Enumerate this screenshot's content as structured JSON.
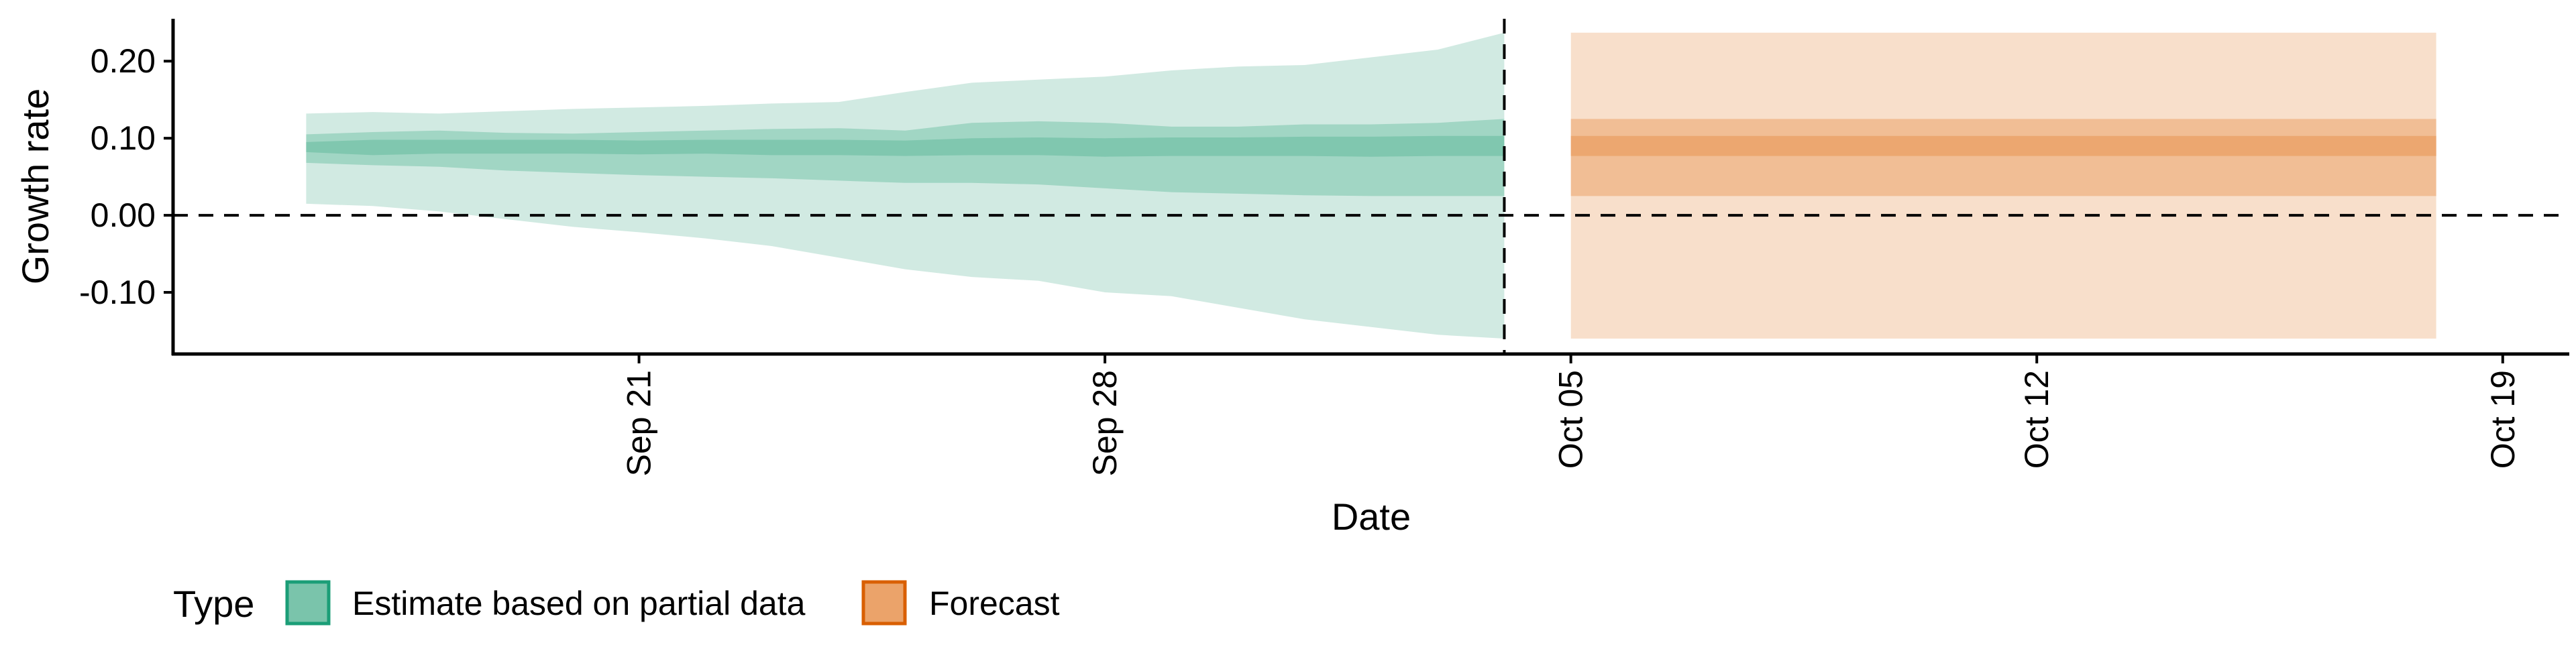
{
  "chart_data": {
    "type": "area",
    "xlabel": "Date",
    "ylabel": "Growth rate",
    "legend_title": "Type",
    "legend_position": "bottom-left",
    "grid": false,
    "reference_lines": {
      "horizontal_y": 0.0,
      "vertical_x": "2020-10-04"
    },
    "x_axis": {
      "type": "date",
      "min": "2020-09-14",
      "max": "2020-10-20",
      "ticks": [
        "2020-09-21",
        "2020-09-28",
        "2020-10-05",
        "2020-10-12",
        "2020-10-19"
      ],
      "tick_labels": [
        "Sep 21",
        "Sep 28",
        "Oct 05",
        "Oct 12",
        "Oct 19"
      ]
    },
    "y_axis": {
      "min": -0.18,
      "max": 0.255,
      "ticks": [
        -0.1,
        0.0,
        0.1,
        0.2
      ],
      "tick_labels": [
        "-0.10",
        "0.00",
        "0.10",
        "0.20"
      ]
    },
    "series": [
      {
        "name": "Estimate based on partial data",
        "color": "#7ac4ab",
        "x": [
          "2020-09-16",
          "2020-09-17",
          "2020-09-18",
          "2020-09-19",
          "2020-09-20",
          "2020-09-21",
          "2020-09-22",
          "2020-09-23",
          "2020-09-24",
          "2020-09-25",
          "2020-09-26",
          "2020-09-27",
          "2020-09-28",
          "2020-09-29",
          "2020-09-30",
          "2020-10-01",
          "2020-10-02",
          "2020-10-03",
          "2020-10-04"
        ],
        "lower_90": [
          0.015,
          0.012,
          0.005,
          -0.005,
          -0.015,
          -0.022,
          -0.03,
          -0.04,
          -0.055,
          -0.07,
          -0.08,
          -0.085,
          -0.1,
          -0.105,
          -0.12,
          -0.135,
          -0.145,
          -0.155,
          -0.16
        ],
        "upper_90": [
          0.132,
          0.134,
          0.132,
          0.135,
          0.138,
          0.14,
          0.142,
          0.145,
          0.147,
          0.16,
          0.172,
          0.176,
          0.18,
          0.188,
          0.193,
          0.195,
          0.205,
          0.215,
          0.237
        ],
        "lower_50": [
          0.068,
          0.065,
          0.063,
          0.058,
          0.055,
          0.052,
          0.05,
          0.048,
          0.045,
          0.042,
          0.042,
          0.04,
          0.035,
          0.03,
          0.028,
          0.026,
          0.025,
          0.025,
          0.025
        ],
        "upper_50": [
          0.105,
          0.108,
          0.11,
          0.107,
          0.106,
          0.108,
          0.11,
          0.112,
          0.113,
          0.11,
          0.12,
          0.122,
          0.12,
          0.115,
          0.115,
          0.118,
          0.118,
          0.12,
          0.125
        ],
        "lower_20": [
          0.082,
          0.078,
          0.08,
          0.08,
          0.08,
          0.079,
          0.08,
          0.078,
          0.078,
          0.077,
          0.078,
          0.078,
          0.076,
          0.077,
          0.077,
          0.077,
          0.076,
          0.077,
          0.077
        ],
        "upper_20": [
          0.095,
          0.098,
          0.098,
          0.098,
          0.098,
          0.097,
          0.098,
          0.098,
          0.098,
          0.097,
          0.1,
          0.101,
          0.1,
          0.101,
          0.101,
          0.102,
          0.102,
          0.103,
          0.103
        ]
      },
      {
        "name": "Forecast",
        "color": "#eba36a",
        "x": [
          "2020-10-05",
          "2020-10-18"
        ],
        "lower_90": [
          -0.16,
          -0.16
        ],
        "upper_90": [
          0.237,
          0.237
        ],
        "lower_50": [
          0.025,
          0.025
        ],
        "upper_50": [
          0.125,
          0.125
        ],
        "lower_20": [
          0.077,
          0.077
        ],
        "upper_20": [
          0.103,
          0.103
        ]
      }
    ]
  }
}
